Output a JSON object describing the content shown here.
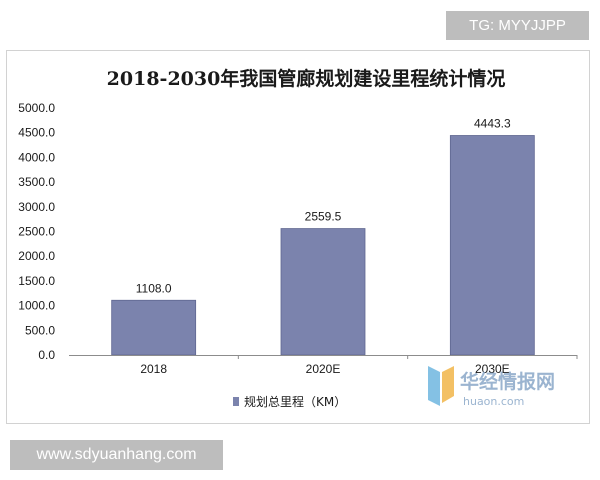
{
  "overlay": {
    "top_right_tag": "TG: MYYJJPP",
    "bottom_left_url": "www.sdyuanhang.com"
  },
  "watermark": {
    "brand_text": "华经情报网",
    "domain_text": "huaon.com",
    "logo_color": "#6fb7e0",
    "text_color": "#8aa8c8"
  },
  "colors": {
    "bar": "#7b83ad",
    "bar_edge": "#5f6690",
    "axis": "#8c8c8c"
  },
  "chart_data": {
    "type": "bar",
    "title": "2018-2030年我国管廊规划建设里程统计情况",
    "categories": [
      "2018",
      "2020E",
      "2030E"
    ],
    "series": [
      {
        "name": "规划总里程（KM）",
        "values": [
          1108.0,
          2559.5,
          4443.3
        ]
      }
    ],
    "data_labels": [
      "1108.0",
      "2559.5",
      "4443.3"
    ],
    "xlabel": "",
    "ylabel": "",
    "ylim": [
      0,
      5000
    ],
    "y_ticks": [
      "0.0",
      "500.0",
      "1000.0",
      "1500.0",
      "2000.0",
      "2500.0",
      "3000.0",
      "3500.0",
      "4000.0",
      "4500.0",
      "5000.0"
    ],
    "grid": false,
    "legend_position": "bottom"
  }
}
